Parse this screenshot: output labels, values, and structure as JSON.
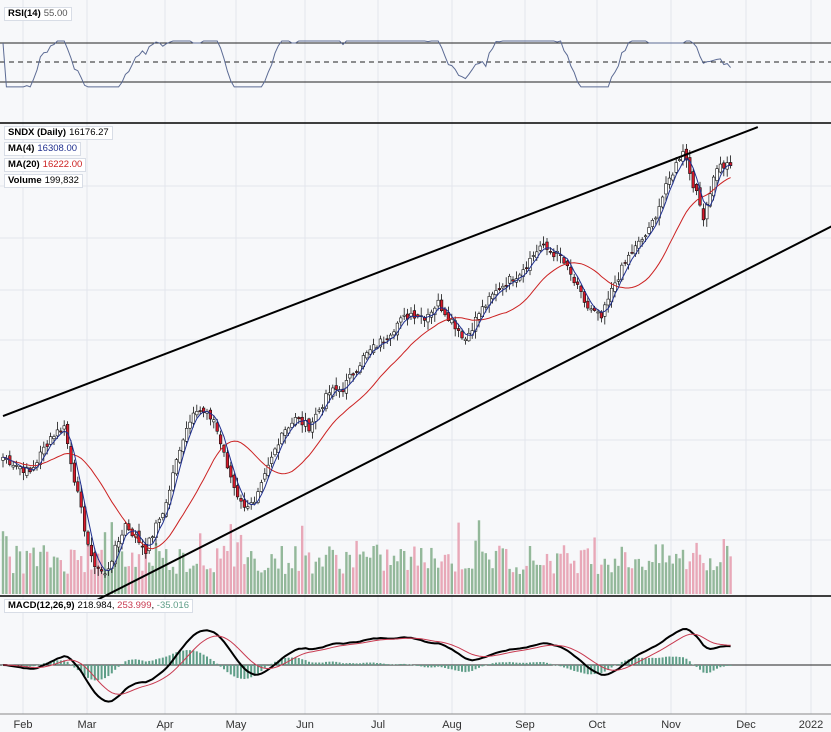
{
  "colors": {
    "bg": "#f7f8fa",
    "up": "#ffffff",
    "down": "#d7192b",
    "ma4": "#1f2f8f",
    "ma20": "#cc2222",
    "vol_up": "#93b89a",
    "vol_down": "#e8a8b8",
    "macd": "#000000",
    "signal": "#c83a50",
    "hist": "#5f9e88",
    "rsi": "#5c6b94",
    "rsi_fill": "#7fb39e",
    "grid": "#e3e6ec"
  },
  "chart_data": {
    "type": "candlestick",
    "x_labels": [
      "Feb",
      "Mar",
      "Apr",
      "May",
      "Jun",
      "Jul",
      "Aug",
      "Sep",
      "Oct",
      "Nov",
      "Dec",
      "2022"
    ],
    "price": {
      "ylim": [
        12000,
        16600
      ]
    },
    "indicators": {
      "rsi": {
        "label": "RSI(14)",
        "value": "55.00"
      },
      "price": {
        "label": "SNDX (Daily)",
        "value": "16176.27"
      },
      "ma4": {
        "label": "MA(4)",
        "value": "16308.00"
      },
      "ma20": {
        "label": "MA(20)",
        "value": "16222.00"
      },
      "volume": {
        "label": "Volume",
        "value": "199,832"
      },
      "macd": {
        "label": "MACD(12,26,9)",
        "value": "218.984",
        "signal": "253.999",
        "hist": "-35.016"
      }
    },
    "anchors": [
      [
        0,
        13350
      ],
      [
        8,
        13200
      ],
      [
        14,
        13550
      ],
      [
        18,
        13650
      ],
      [
        22,
        12980
      ],
      [
        26,
        12350
      ],
      [
        30,
        12200
      ],
      [
        36,
        12700
      ],
      [
        42,
        12450
      ],
      [
        48,
        12900
      ],
      [
        52,
        13450
      ],
      [
        56,
        13820
      ],
      [
        62,
        13720
      ],
      [
        66,
        13250
      ],
      [
        70,
        12900
      ],
      [
        74,
        12880
      ],
      [
        78,
        13250
      ],
      [
        82,
        13600
      ],
      [
        86,
        13720
      ],
      [
        90,
        13650
      ],
      [
        96,
        13980
      ],
      [
        100,
        14020
      ],
      [
        106,
        14320
      ],
      [
        112,
        14500
      ],
      [
        116,
        14650
      ],
      [
        120,
        14750
      ],
      [
        124,
        14720
      ],
      [
        128,
        14850
      ],
      [
        132,
        14680
      ],
      [
        136,
        14500
      ],
      [
        140,
        14750
      ],
      [
        146,
        15000
      ],
      [
        152,
        15150
      ],
      [
        158,
        15400
      ],
      [
        164,
        15300
      ],
      [
        168,
        15050
      ],
      [
        172,
        14800
      ],
      [
        176,
        14700
      ],
      [
        180,
        15050
      ],
      [
        184,
        15300
      ],
      [
        190,
        15550
      ],
      [
        196,
        16050
      ],
      [
        200,
        16350
      ],
      [
        204,
        15900
      ],
      [
        206,
        15700
      ],
      [
        210,
        16180
      ],
      [
        214,
        16176
      ]
    ],
    "trendlines": [
      {
        "from": [
          0,
          13750
        ],
        "to": [
          222,
          16560
        ]
      },
      {
        "from": [
          24,
          11900
        ],
        "to": [
          244,
          15600
        ]
      }
    ]
  }
}
